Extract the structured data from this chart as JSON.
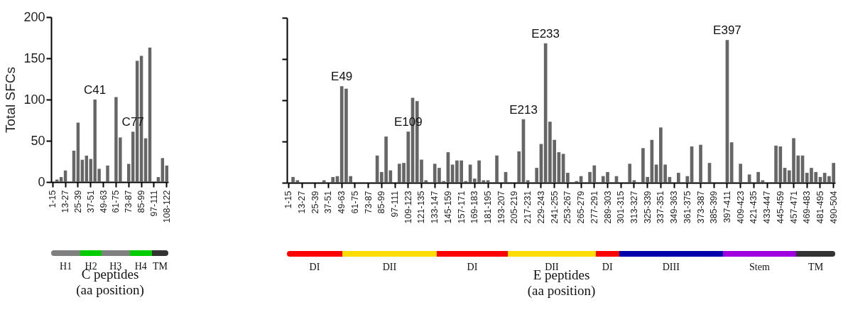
{
  "chart_data": [
    {
      "type": "bar",
      "ylabel": "Total SFCs",
      "xlabel": "C peptides\n(aa position)",
      "categories": [
        "1-15",
        null,
        null,
        "13-27",
        null,
        null,
        "25-39",
        null,
        null,
        "37-51",
        null,
        null,
        "49-63",
        null,
        null,
        "61-75",
        null,
        null,
        "73-87",
        null,
        null,
        "85-99",
        null,
        null,
        "97-111",
        null,
        null,
        "108-122"
      ],
      "values": [
        0,
        3,
        6,
        14,
        0,
        38,
        72,
        27,
        32,
        28,
        100,
        16,
        0,
        20,
        0,
        103,
        54,
        0,
        22,
        61,
        147,
        153,
        53,
        163,
        0,
        6,
        29,
        20
      ],
      "value_labels": [
        null,
        null,
        null,
        null,
        null,
        null,
        null,
        null,
        null,
        null,
        "C41",
        null,
        null,
        null,
        null,
        null,
        null,
        null,
        null,
        "C77",
        null,
        null,
        null,
        null,
        null,
        null,
        null,
        null
      ],
      "color": "#666666",
      "ylim": [
        0,
        200
      ],
      "yticks": [
        0,
        50,
        100,
        150,
        200
      ],
      "annotations": [
        "H1",
        "H2",
        "H3",
        "H4",
        "TM"
      ]
    },
    {
      "type": "bar",
      "xlabel": "E peptides\n(aa position)",
      "categories": [
        "1-15",
        null,
        null,
        "13-27",
        null,
        null,
        "25-39",
        null,
        null,
        "37-51",
        null,
        null,
        "49-63",
        null,
        null,
        "61-75",
        null,
        null,
        "73-87",
        null,
        null,
        "85-99",
        null,
        null,
        "97-111",
        null,
        null,
        "109-123",
        null,
        null,
        "121-135",
        null,
        null,
        "133-147",
        null,
        null,
        "145-159",
        null,
        null,
        "157-171",
        null,
        null,
        "169-183",
        null,
        null,
        "181-195",
        null,
        null,
        "193-207",
        null,
        null,
        "205-219",
        null,
        null,
        "217-231",
        null,
        null,
        "229-243",
        null,
        null,
        "241-255",
        null,
        null,
        "253-267",
        null,
        null,
        "265-279",
        null,
        null,
        "277-291",
        null,
        null,
        "289-303",
        null,
        null,
        "301-315",
        null,
        null,
        "313-327",
        null,
        null,
        "325-339",
        null,
        null,
        "337-351",
        null,
        null,
        "349-363",
        null,
        null,
        "361-375",
        null,
        null,
        "373-387",
        null,
        null,
        "385-399",
        null,
        null,
        "397-411",
        null,
        null,
        "409-423",
        null,
        null,
        "421-435",
        null,
        null,
        "433-447",
        null,
        null,
        "445-459",
        null,
        null,
        "457-471",
        null,
        null,
        "469-483",
        null,
        null,
        "481-495",
        null,
        null,
        "490-504"
      ],
      "values": [
        0,
        7,
        3,
        0,
        0,
        0,
        0,
        0,
        3,
        0,
        7,
        8,
        117,
        114,
        8,
        0,
        0,
        0,
        0,
        0,
        33,
        13,
        56,
        15,
        0,
        23,
        24,
        62,
        103,
        99,
        28,
        3,
        0,
        23,
        18,
        2,
        37,
        22,
        27,
        27,
        2,
        22,
        5,
        27,
        3,
        3,
        0,
        33,
        0,
        13,
        0,
        0,
        38,
        77,
        3,
        0,
        18,
        47,
        169,
        74,
        52,
        37,
        35,
        12,
        0,
        2,
        8,
        0,
        13,
        21,
        0,
        8,
        13,
        0,
        8,
        0,
        0,
        23,
        3,
        0,
        42,
        7,
        52,
        22,
        67,
        22,
        7,
        0,
        12,
        0,
        8,
        44,
        0,
        46,
        0,
        24,
        0,
        0,
        0,
        173,
        49,
        0,
        23,
        0,
        10,
        0,
        13,
        3,
        0,
        0,
        45,
        44,
        18,
        15,
        54,
        33,
        33,
        12,
        18,
        13,
        7,
        12,
        8,
        24
      ],
      "value_labels": [
        null,
        null,
        null,
        null,
        null,
        null,
        null,
        null,
        null,
        null,
        null,
        null,
        "E49",
        null,
        null,
        null,
        null,
        null,
        null,
        null,
        null,
        null,
        null,
        null,
        null,
        null,
        null,
        "E109",
        null,
        null,
        null,
        null,
        null,
        null,
        null,
        null,
        null,
        null,
        null,
        null,
        null,
        null,
        null,
        null,
        null,
        null,
        null,
        null,
        null,
        null,
        null,
        null,
        null,
        "E213",
        null,
        null,
        null,
        null,
        "E233",
        null,
        null,
        null,
        null,
        null,
        null,
        null,
        null,
        null,
        null,
        null,
        null,
        null,
        null,
        null,
        null,
        null,
        null,
        null,
        null,
        null,
        null,
        null,
        null,
        null,
        null,
        null,
        null,
        null,
        null,
        null,
        null,
        null,
        null,
        null,
        null,
        null,
        null,
        null,
        null,
        "E397",
        null,
        null,
        null,
        null,
        null,
        null,
        null,
        null,
        null,
        null,
        null,
        null,
        null,
        null,
        null,
        null,
        null,
        null,
        null,
        null,
        null,
        null,
        null,
        null
      ],
      "color": "#666666",
      "ylim": [
        0,
        200
      ],
      "yticks": [
        {
          "value": 0,
          "label": null
        },
        {
          "value": 50,
          "label": null
        },
        {
          "value": 100,
          "label": null
        },
        {
          "value": 150,
          "label": null
        },
        {
          "value": 200,
          "label": null
        }
      ],
      "tick_labels": "x",
      "annotations": [
        "DI",
        "DII",
        "DI",
        "DII",
        "DI",
        "DIII",
        "Stem",
        "TM"
      ]
    }
  ]
}
